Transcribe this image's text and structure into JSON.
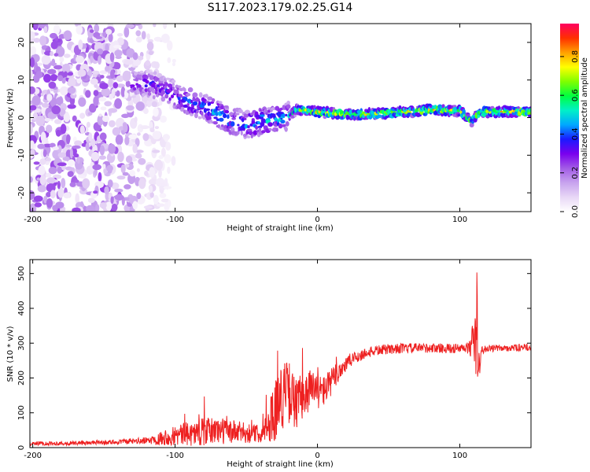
{
  "title": "S117.2023.179.02.25.G14",
  "chart_data": [
    {
      "type": "heatmap",
      "xlabel": "Height of straight line (km)",
      "ylabel": "Frequency (Hz)",
      "xlim": [
        -202,
        150
      ],
      "ylim": [
        -25,
        25
      ],
      "xticks": [
        -200,
        -100,
        0,
        100
      ],
      "xtick_labels": [
        "-200",
        "-100",
        "0",
        "100"
      ],
      "yticks": [
        -20,
        -10,
        0,
        10,
        20
      ],
      "ytick_labels": [
        "-20",
        "-10",
        "0",
        "10",
        "20"
      ],
      "colorbar": {
        "label": "Normalized spectral amplitude",
        "range": [
          0,
          0.97
        ],
        "ticks": [
          0,
          0.2,
          0.4,
          0.6,
          0.8
        ],
        "tick_labels": [
          "0.0",
          "0.2",
          "0.4",
          "0.6",
          "0.8"
        ],
        "colormap": [
          "#ffffff",
          "#e8d7f6",
          "#c7a3ee",
          "#a25be6",
          "#7a00ee",
          "#1a1aff",
          "#00a8ff",
          "#00f0c8",
          "#00ff40",
          "#80ff00",
          "#ffff00",
          "#ffa000",
          "#ff3000",
          "#ff0060"
        ]
      },
      "ridge": {
        "x": [
          -130,
          -120,
          -110,
          -100,
          -90,
          -80,
          -70,
          -60,
          -50,
          -40,
          -30,
          -20,
          -15,
          -10,
          0,
          20,
          40,
          60,
          80,
          100,
          108,
          115,
          130,
          150
        ],
        "y": [
          9,
          9,
          8,
          6,
          4,
          3,
          1,
          -1,
          -2,
          -1,
          -0.5,
          0.5,
          2,
          2,
          1.5,
          0.8,
          1,
          1.5,
          2,
          1.8,
          -1,
          1.5,
          1.5,
          1.5
        ],
        "peak_amplitude": [
          0.35,
          0.4,
          0.4,
          0.45,
          0.5,
          0.5,
          0.55,
          0.5,
          0.55,
          0.6,
          0.55,
          0.6,
          0.7,
          0.8,
          0.85,
          0.9,
          0.9,
          0.9,
          0.9,
          0.85,
          0.7,
          0.85,
          0.9,
          0.9
        ]
      },
      "noise_region_x": [
        -202,
        -110
      ],
      "noise_amplitude_range": [
        0,
        0.25
      ]
    },
    {
      "type": "line",
      "xlabel": "Height of straight line (km)",
      "ylabel": "SNR (10 * v/v)",
      "xlim": [
        -202,
        150
      ],
      "ylim": [
        0,
        540
      ],
      "xticks": [
        -200,
        -100,
        0,
        100
      ],
      "xtick_labels": [
        "-200",
        "-100",
        "0",
        "100"
      ],
      "yticks": [
        0,
        100,
        200,
        300,
        400,
        500
      ],
      "ytick_labels": [
        "0",
        "100",
        "200",
        "300",
        "400",
        "500"
      ],
      "series": [
        {
          "color": "#ee2020",
          "x": [
            -202,
            -180,
            -160,
            -140,
            -120,
            -110,
            -100,
            -90,
            -80,
            -70,
            -60,
            -50,
            -40,
            -35,
            -30,
            -25,
            -20,
            -15,
            -10,
            -5,
            0,
            5,
            10,
            15,
            20,
            25,
            30,
            35,
            40,
            50,
            60,
            70,
            80,
            90,
            100,
            105,
            108,
            110,
            111,
            112,
            113,
            115,
            120,
            130,
            140,
            150
          ],
          "y": [
            12,
            12,
            14,
            16,
            20,
            28,
            35,
            40,
            45,
            50,
            45,
            42,
            40,
            60,
            110,
            150,
            160,
            120,
            150,
            170,
            160,
            165,
            190,
            220,
            240,
            255,
            265,
            272,
            278,
            283,
            285,
            286,
            286,
            285,
            284,
            285,
            290,
            330,
            270,
            400,
            200,
            280,
            285,
            286,
            287,
            288
          ],
          "noise_amplitude": [
            6,
            6,
            6,
            7,
            10,
            20,
            30,
            35,
            40,
            40,
            35,
            30,
            25,
            50,
            90,
            100,
            90,
            80,
            70,
            60,
            50,
            45,
            40,
            35,
            25,
            20,
            18,
            15,
            15,
            15,
            14,
            14,
            14,
            14,
            14,
            16,
            30,
            80,
            100,
            140,
            70,
            12,
            10,
            10,
            10,
            10
          ]
        }
      ]
    }
  ]
}
